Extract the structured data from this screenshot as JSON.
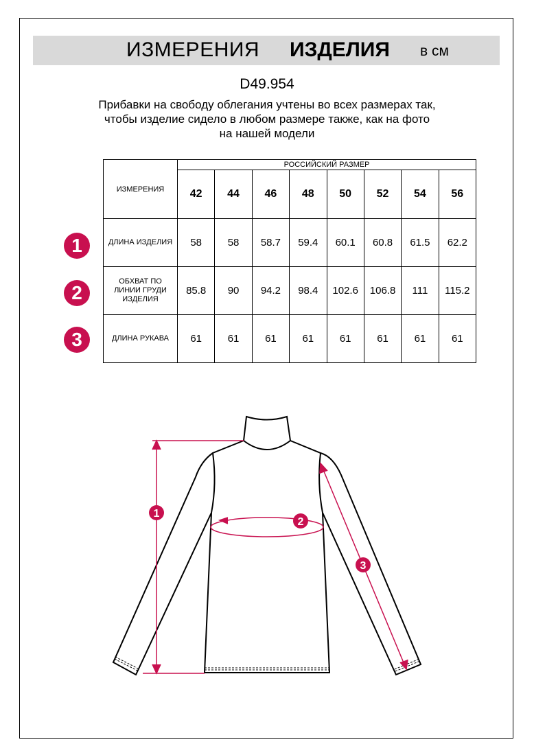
{
  "header": {
    "title_regular": "ИЗМЕРЕНИЯ",
    "title_bold": "ИЗДЕЛИЯ",
    "unit": "в см"
  },
  "article": "D49.954",
  "note": [
    "Прибавки на свободу облегания учтены во всех размерах так,",
    "чтобы изделие сидело в любом размере также, как на фото",
    "на нашей модели"
  ],
  "accent_color": "#c8104f",
  "table": {
    "corner": "ИЗМЕРЕНИЯ",
    "group_header": "РОССИЙСКИЙ РАЗМЕР",
    "sizes": [
      "42",
      "44",
      "46",
      "48",
      "50",
      "52",
      "54",
      "56"
    ],
    "rows": [
      {
        "badge": "1",
        "label": "ДЛИНА ИЗДЕЛИЯ",
        "values": [
          "58",
          "58",
          "58.7",
          "59.4",
          "60.1",
          "60.8",
          "61.5",
          "62.2"
        ]
      },
      {
        "badge": "2",
        "label": "ОБХВАТ ПО ЛИНИИ ГРУДИ ИЗДЕЛИЯ",
        "values": [
          "85.8",
          "90",
          "94.2",
          "98.4",
          "102.6",
          "106.8",
          "111",
          "115.2"
        ]
      },
      {
        "badge": "3",
        "label": "ДЛИНА РУКАВА",
        "values": [
          "61",
          "61",
          "61",
          "61",
          "61",
          "61",
          "61",
          "61"
        ]
      }
    ]
  },
  "diagram": {
    "markers": [
      "1",
      "2",
      "3"
    ]
  }
}
